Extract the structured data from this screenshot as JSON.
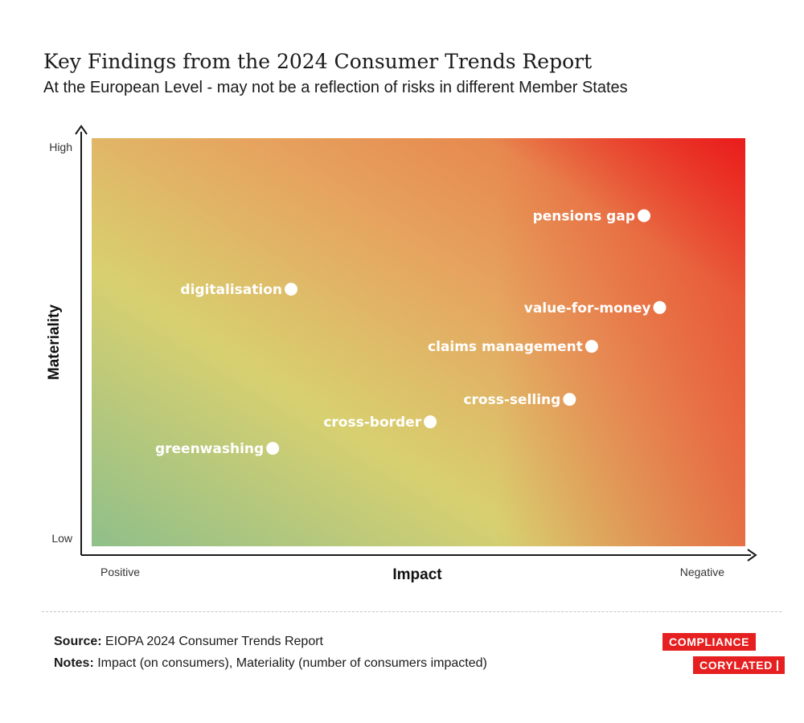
{
  "title": "Key Findings from the 2024 Consumer Trends Report",
  "subtitle": "At the European Level -  may not be a reflection of risks in different Member States",
  "chart_data": {
    "type": "scatter",
    "xlabel": "Impact",
    "ylabel": "Materiality",
    "x_tick_labels": [
      "Positive",
      "Negative"
    ],
    "y_tick_labels": [
      "High",
      "Low"
    ],
    "xlim": [
      0,
      100
    ],
    "ylim": [
      0,
      100
    ],
    "background": "gradient from green (positive impact, low materiality) through yellow and orange to red (negative impact, high materiality)",
    "colors": {
      "green": "#8fbf8a",
      "yellow": "#d8d070",
      "orange": "#e6a05e",
      "red": "#ea1c1c",
      "point": "#ffffff"
    },
    "points": [
      {
        "label": "pensions gap",
        "x": 84.5,
        "y": 81
      },
      {
        "label": "digitalisation",
        "x": 30.5,
        "y": 63
      },
      {
        "label": "value-for-money",
        "x": 86.9,
        "y": 58.5
      },
      {
        "label": "claims management",
        "x": 76.5,
        "y": 49
      },
      {
        "label": "cross-selling",
        "x": 73.1,
        "y": 36
      },
      {
        "label": "cross-border",
        "x": 51.8,
        "y": 30.5
      },
      {
        "label": "greenwashing",
        "x": 27.7,
        "y": 24
      }
    ]
  },
  "footer": {
    "source_label": "Source:",
    "source_text": "EIOPA 2024 Consumer Trends Report",
    "notes_label": "Notes:",
    "notes_text": "Impact (on consumers), Materiality (number of consumers impacted)",
    "logo_line1": "COMPLIANCE",
    "logo_line2": "CORYLATED"
  }
}
